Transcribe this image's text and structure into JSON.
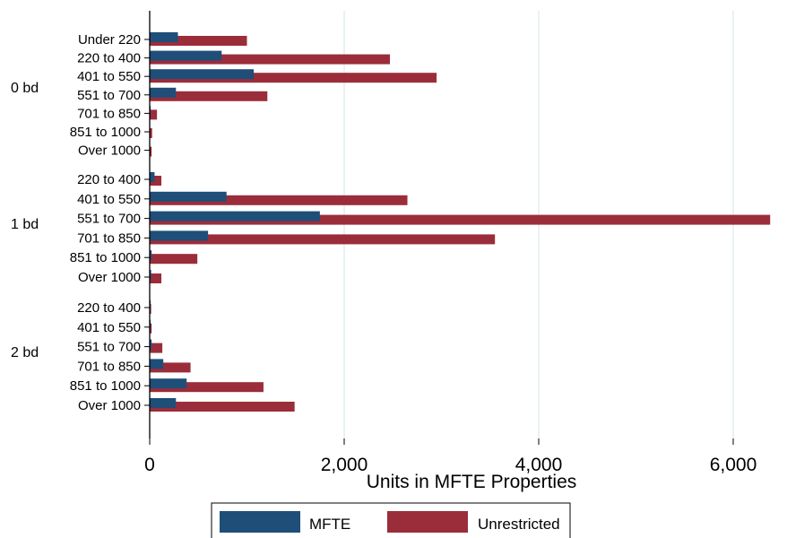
{
  "chart_data": {
    "type": "bar",
    "orientation": "horizontal",
    "xlabel": "Units in MFTE Properties",
    "xlim": [
      0,
      6400
    ],
    "xticks": [
      0,
      2000,
      4000,
      6000
    ],
    "xtick_labels": [
      "0",
      "2,000",
      "4,000",
      "6,000"
    ],
    "grid": true,
    "legend_position": "bottom",
    "groups": [
      {
        "label": "0 bd",
        "categories": [
          "Under 220",
          "220 to 400",
          "401 to 550",
          "551 to 700",
          "701 to 850",
          "851 to 1000",
          "Over 1000"
        ],
        "mfte": [
          290,
          740,
          1070,
          270,
          10,
          5,
          5
        ],
        "unrestricted": [
          1000,
          2470,
          2950,
          1210,
          75,
          25,
          20
        ]
      },
      {
        "label": "1 bd",
        "categories": [
          "220 to 400",
          "401 to 550",
          "551 to 700",
          "701 to 850",
          "851 to 1000",
          "Over 1000"
        ],
        "mfte": [
          50,
          790,
          1750,
          600,
          20,
          15
        ],
        "unrestricted": [
          120,
          2650,
          6380,
          3550,
          490,
          120
        ]
      },
      {
        "label": "2 bd",
        "categories": [
          "220 to 400",
          "401 to 550",
          "551 to 700",
          "701 to 850",
          "851 to 1000",
          "Over 1000"
        ],
        "mfte": [
          10,
          10,
          20,
          140,
          380,
          270
        ],
        "unrestricted": [
          15,
          20,
          130,
          420,
          1170,
          1490
        ]
      }
    ],
    "series": [
      {
        "name": "MFTE",
        "color": "#1f4e79"
      },
      {
        "name": "Unrestricted",
        "color": "#9b2d3a"
      }
    ]
  }
}
